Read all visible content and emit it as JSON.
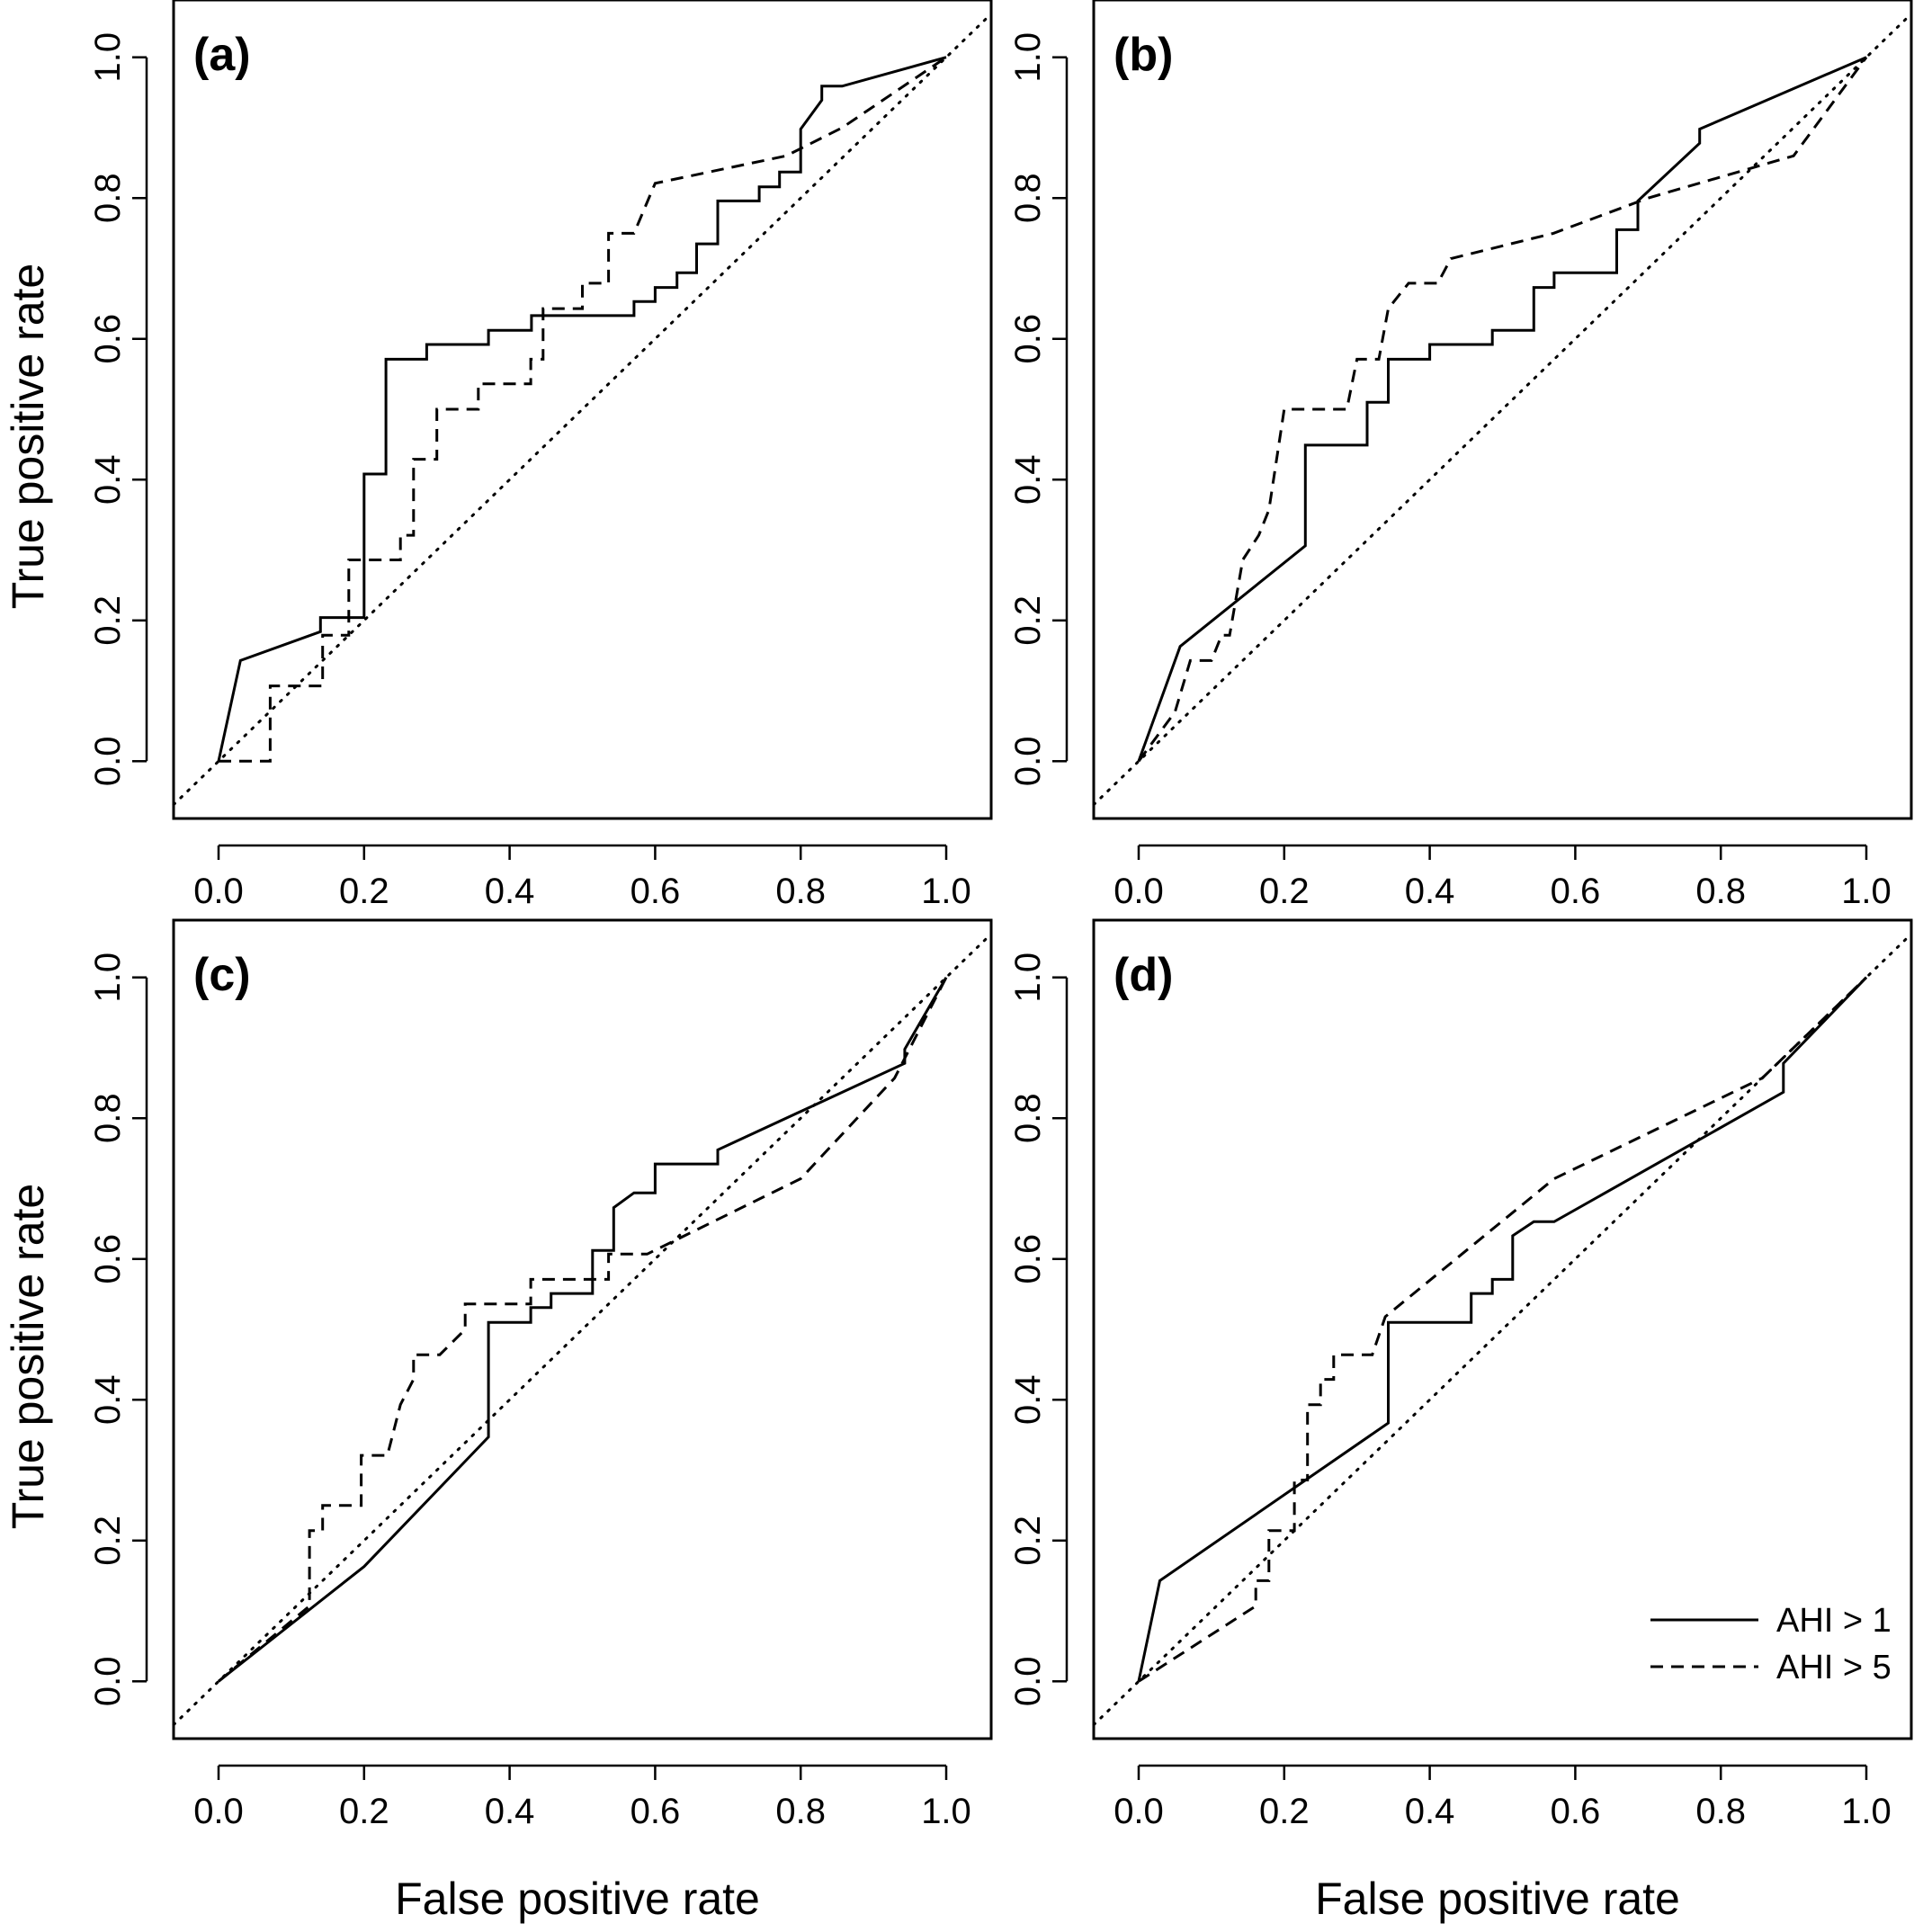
{
  "chart_data": [
    {
      "type": "line",
      "panel_label": "(a)",
      "xlabel": "",
      "ylabel": "True positive rate",
      "xlim": [
        0,
        1
      ],
      "ylim": [
        0,
        1
      ],
      "xticks": [
        "0.0",
        "0.2",
        "0.4",
        "0.6",
        "0.8",
        "1.0"
      ],
      "yticks": [
        "0.0",
        "0.2",
        "0.4",
        "0.6",
        "0.8",
        "1.0"
      ],
      "reference_line": [
        [
          0,
          0
        ],
        [
          1,
          1
        ]
      ],
      "series": [
        {
          "style": "solid",
          "points": [
            [
              0,
              0
            ],
            [
              0.03,
              0.143
            ],
            [
              0.14,
              0.184
            ],
            [
              0.14,
              0.204
            ],
            [
              0.2,
              0.204
            ],
            [
              0.2,
              0.408
            ],
            [
              0.23,
              0.408
            ],
            [
              0.23,
              0.571
            ],
            [
              0.286,
              0.571
            ],
            [
              0.286,
              0.592
            ],
            [
              0.371,
              0.592
            ],
            [
              0.371,
              0.612
            ],
            [
              0.43,
              0.612
            ],
            [
              0.43,
              0.633
            ],
            [
              0.571,
              0.633
            ],
            [
              0.571,
              0.653
            ],
            [
              0.6,
              0.653
            ],
            [
              0.6,
              0.673
            ],
            [
              0.63,
              0.673
            ],
            [
              0.63,
              0.694
            ],
            [
              0.657,
              0.694
            ],
            [
              0.657,
              0.735
            ],
            [
              0.686,
              0.735
            ],
            [
              0.686,
              0.796
            ],
            [
              0.743,
              0.796
            ],
            [
              0.743,
              0.816
            ],
            [
              0.771,
              0.816
            ],
            [
              0.771,
              0.837
            ],
            [
              0.8,
              0.837
            ],
            [
              0.8,
              0.898
            ],
            [
              0.829,
              0.939
            ],
            [
              0.829,
              0.959
            ],
            [
              0.857,
              0.959
            ],
            [
              1,
              1
            ]
          ]
        },
        {
          "style": "dashed",
          "points": [
            [
              0,
              0
            ],
            [
              0.071,
              0
            ],
            [
              0.071,
              0.107
            ],
            [
              0.143,
              0.107
            ],
            [
              0.143,
              0.179
            ],
            [
              0.179,
              0.179
            ],
            [
              0.179,
              0.286
            ],
            [
              0.25,
              0.286
            ],
            [
              0.25,
              0.321
            ],
            [
              0.268,
              0.321
            ],
            [
              0.268,
              0.429
            ],
            [
              0.3,
              0.429
            ],
            [
              0.3,
              0.5
            ],
            [
              0.357,
              0.5
            ],
            [
              0.357,
              0.536
            ],
            [
              0.429,
              0.536
            ],
            [
              0.429,
              0.571
            ],
            [
              0.446,
              0.571
            ],
            [
              0.446,
              0.643
            ],
            [
              0.5,
              0.643
            ],
            [
              0.5,
              0.679
            ],
            [
              0.536,
              0.679
            ],
            [
              0.536,
              0.75
            ],
            [
              0.571,
              0.75
            ],
            [
              0.6,
              0.821
            ],
            [
              0.78,
              0.86
            ],
            [
              0.857,
              0.9
            ],
            [
              1,
              1
            ]
          ]
        }
      ]
    },
    {
      "type": "line",
      "panel_label": "(b)",
      "xlabel": "",
      "ylabel": "",
      "xlim": [
        0,
        1
      ],
      "ylim": [
        0,
        1
      ],
      "xticks": [
        "0.0",
        "0.2",
        "0.4",
        "0.6",
        "0.8",
        "1.0"
      ],
      "yticks": [
        "0.0",
        "0.2",
        "0.4",
        "0.6",
        "0.8",
        "1.0"
      ],
      "reference_line": [
        [
          0,
          0
        ],
        [
          1,
          1
        ]
      ],
      "series": [
        {
          "style": "solid",
          "points": [
            [
              0,
              0
            ],
            [
              0.057,
              0.163
            ],
            [
              0.229,
              0.306
            ],
            [
              0.229,
              0.449
            ],
            [
              0.314,
              0.449
            ],
            [
              0.314,
              0.51
            ],
            [
              0.343,
              0.51
            ],
            [
              0.343,
              0.571
            ],
            [
              0.4,
              0.571
            ],
            [
              0.4,
              0.592
            ],
            [
              0.486,
              0.592
            ],
            [
              0.486,
              0.612
            ],
            [
              0.543,
              0.612
            ],
            [
              0.543,
              0.673
            ],
            [
              0.571,
              0.673
            ],
            [
              0.571,
              0.694
            ],
            [
              0.657,
              0.694
            ],
            [
              0.657,
              0.755
            ],
            [
              0.686,
              0.755
            ],
            [
              0.686,
              0.796
            ],
            [
              0.771,
              0.878
            ],
            [
              0.771,
              0.898
            ],
            [
              1,
              1
            ]
          ]
        },
        {
          "style": "dashed",
          "points": [
            [
              0,
              0
            ],
            [
              0.05,
              0.07
            ],
            [
              0.071,
              0.143
            ],
            [
              0.1,
              0.143
            ],
            [
              0.114,
              0.179
            ],
            [
              0.125,
              0.179
            ],
            [
              0.143,
              0.286
            ],
            [
              0.165,
              0.321
            ],
            [
              0.179,
              0.357
            ],
            [
              0.2,
              0.5
            ],
            [
              0.286,
              0.5
            ],
            [
              0.3,
              0.571
            ],
            [
              0.33,
              0.571
            ],
            [
              0.343,
              0.643
            ],
            [
              0.371,
              0.679
            ],
            [
              0.411,
              0.679
            ],
            [
              0.429,
              0.714
            ],
            [
              0.57,
              0.75
            ],
            [
              0.7,
              0.8
            ],
            [
              0.9,
              0.86
            ],
            [
              1,
              1
            ]
          ]
        }
      ]
    },
    {
      "type": "line",
      "panel_label": "(c)",
      "xlabel": "False positive rate",
      "ylabel": "True positive rate",
      "xlim": [
        0,
        1
      ],
      "ylim": [
        0,
        1
      ],
      "xticks": [
        "0.0",
        "0.2",
        "0.4",
        "0.6",
        "0.8",
        "1.0"
      ],
      "yticks": [
        "0.0",
        "0.2",
        "0.4",
        "0.6",
        "0.8",
        "1.0"
      ],
      "reference_line": [
        [
          0,
          0
        ],
        [
          1,
          1
        ]
      ],
      "series": [
        {
          "style": "solid",
          "points": [
            [
              0,
              0
            ],
            [
              0.2,
              0.163
            ],
            [
              0.371,
              0.347
            ],
            [
              0.371,
              0.51
            ],
            [
              0.429,
              0.51
            ],
            [
              0.429,
              0.531
            ],
            [
              0.457,
              0.531
            ],
            [
              0.457,
              0.551
            ],
            [
              0.514,
              0.551
            ],
            [
              0.514,
              0.612
            ],
            [
              0.543,
              0.612
            ],
            [
              0.543,
              0.673
            ],
            [
              0.571,
              0.694
            ],
            [
              0.6,
              0.694
            ],
            [
              0.6,
              0.735
            ],
            [
              0.686,
              0.735
            ],
            [
              0.686,
              0.755
            ],
            [
              0.943,
              0.878
            ],
            [
              0.943,
              0.898
            ],
            [
              1,
              1
            ]
          ]
        },
        {
          "style": "dashed",
          "points": [
            [
              0,
              0
            ],
            [
              0.125,
              0.107
            ],
            [
              0.125,
              0.214
            ],
            [
              0.143,
              0.214
            ],
            [
              0.143,
              0.25
            ],
            [
              0.196,
              0.25
            ],
            [
              0.196,
              0.321
            ],
            [
              0.232,
              0.321
            ],
            [
              0.25,
              0.393
            ],
            [
              0.268,
              0.429
            ],
            [
              0.268,
              0.464
            ],
            [
              0.304,
              0.464
            ],
            [
              0.339,
              0.5
            ],
            [
              0.339,
              0.536
            ],
            [
              0.429,
              0.536
            ],
            [
              0.429,
              0.571
            ],
            [
              0.536,
              0.571
            ],
            [
              0.536,
              0.607
            ],
            [
              0.589,
              0.607
            ],
            [
              0.8,
              0.714
            ],
            [
              0.929,
              0.857
            ],
            [
              1,
              1
            ]
          ]
        }
      ]
    },
    {
      "type": "line",
      "panel_label": "(d)",
      "xlabel": "False positive rate",
      "ylabel": "",
      "xlim": [
        0,
        1
      ],
      "ylim": [
        0,
        1
      ],
      "xticks": [
        "0.0",
        "0.2",
        "0.4",
        "0.6",
        "0.8",
        "1.0"
      ],
      "yticks": [
        "0.0",
        "0.2",
        "0.4",
        "0.6",
        "0.8",
        "1.0"
      ],
      "reference_line": [
        [
          0,
          0
        ],
        [
          1,
          1
        ]
      ],
      "legend": {
        "placement": "bottom-right",
        "entries": [
          {
            "label": "AHI > 1",
            "style": "solid"
          },
          {
            "label": "AHI > 5",
            "style": "dashed"
          }
        ]
      },
      "series": [
        {
          "style": "solid",
          "points": [
            [
              0,
              0
            ],
            [
              0.029,
              0.143
            ],
            [
              0.343,
              0.367
            ],
            [
              0.343,
              0.51
            ],
            [
              0.457,
              0.51
            ],
            [
              0.457,
              0.551
            ],
            [
              0.486,
              0.551
            ],
            [
              0.486,
              0.571
            ],
            [
              0.514,
              0.571
            ],
            [
              0.514,
              0.633
            ],
            [
              0.543,
              0.653
            ],
            [
              0.571,
              0.653
            ],
            [
              0.886,
              0.837
            ],
            [
              0.886,
              0.878
            ],
            [
              1,
              1
            ]
          ]
        },
        {
          "style": "dashed",
          "points": [
            [
              0,
              0
            ],
            [
              0.161,
              0.107
            ],
            [
              0.161,
              0.143
            ],
            [
              0.179,
              0.143
            ],
            [
              0.179,
              0.214
            ],
            [
              0.214,
              0.214
            ],
            [
              0.214,
              0.286
            ],
            [
              0.232,
              0.286
            ],
            [
              0.232,
              0.393
            ],
            [
              0.25,
              0.393
            ],
            [
              0.25,
              0.429
            ],
            [
              0.268,
              0.429
            ],
            [
              0.268,
              0.464
            ],
            [
              0.321,
              0.464
            ],
            [
              0.339,
              0.518
            ],
            [
              0.571,
              0.714
            ],
            [
              0.857,
              0.857
            ],
            [
              1,
              1
            ]
          ]
        }
      ]
    }
  ]
}
